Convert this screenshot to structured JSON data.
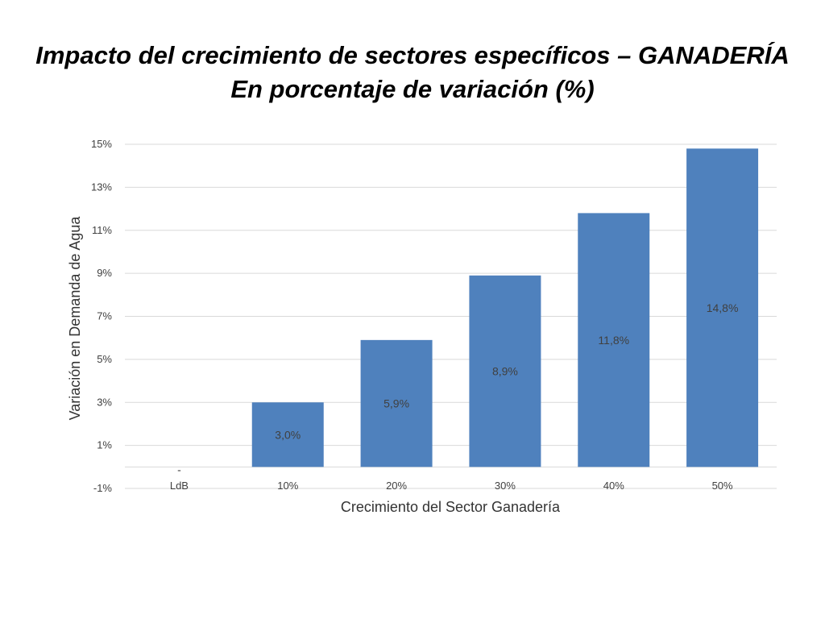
{
  "title": "Impacto del crecimiento de sectores específicos – GANADERÍA",
  "subtitle": "En porcentaje de variación (%)",
  "colors": {
    "bar": "#4f81bd",
    "grid": "#d9d9d9",
    "text": "#404040"
  },
  "chart_data": {
    "type": "bar",
    "categories": [
      "LdB",
      "10%",
      "20%",
      "30%",
      "40%",
      "50%"
    ],
    "values": [
      0.0,
      3.0,
      5.9,
      8.9,
      11.8,
      14.8
    ],
    "data_labels": [
      "-",
      "3,0%",
      "5,9%",
      "8,9%",
      "11,8%",
      "14,8%"
    ],
    "xlabel": "Crecimiento del Sector Ganadería",
    "ylabel": "Variación en Demanda de Agua",
    "yticks": [
      -1,
      1,
      3,
      5,
      7,
      9,
      11,
      13,
      15
    ],
    "ytick_labels": [
      "-1%",
      "1%",
      "3%",
      "5%",
      "7%",
      "9%",
      "11%",
      "13%",
      "15%"
    ],
    "ylim": [
      -1,
      15
    ],
    "grid": true,
    "legend": "none"
  }
}
